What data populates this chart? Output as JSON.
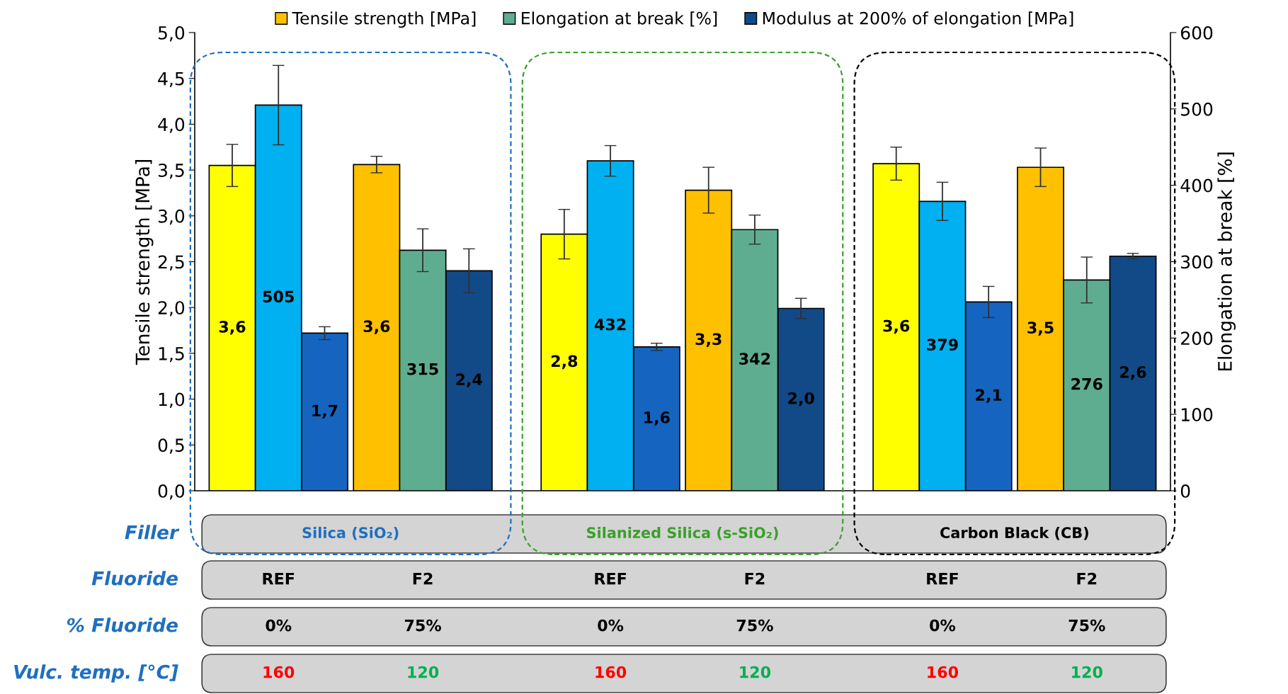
{
  "chart_data": {
    "type": "bar",
    "ylabel": "Tensile strength [MPa]",
    "y2label": "Elongation at break [%]",
    "categories": [
      "REF",
      "F2",
      "REF",
      "F2",
      "REF",
      "F2"
    ],
    "series": [
      {
        "name": "Tensile strength [MPa]",
        "color": "#ffc000",
        "colors": [
          "#ffff00",
          "#ffc000",
          "#ffff00",
          "#ffc000",
          "#ffff00",
          "#ffc000"
        ],
        "values": [
          3.55,
          3.56,
          2.8,
          3.28,
          3.57,
          3.53
        ],
        "errors": [
          0.23,
          0.09,
          0.27,
          0.25,
          0.18,
          0.21
        ],
        "value_labels": [
          "3,6",
          "3,6",
          "2,8",
          "3,3",
          "3,6",
          "3,5"
        ]
      },
      {
        "name": "Elongation at break [%]",
        "axis": "y2",
        "color": "#5fad91",
        "colors": [
          "#00b0f0",
          "#5fad91",
          "#00b0f0",
          "#5fad91",
          "#00b0f0",
          "#5fad91"
        ],
        "values": [
          505,
          315,
          432,
          342,
          379,
          276
        ],
        "errors": [
          52,
          28,
          20,
          19,
          25,
          30
        ],
        "value_labels": [
          "505",
          "315",
          "432",
          "342",
          "379",
          "276"
        ]
      },
      {
        "name": "Modulus at 200% of elongation [MPa]",
        "color": "#124a87",
        "colors": [
          "#1565c0",
          "#124a87",
          "#1565c0",
          "#124a87",
          "#1565c0",
          "#124a87"
        ],
        "values": [
          1.72,
          2.4,
          1.57,
          1.99,
          2.06,
          2.56
        ],
        "errors": [
          0.07,
          0.24,
          0.04,
          0.11,
          0.17,
          0.03
        ],
        "value_labels": [
          "1,7",
          "2,4",
          "1,6",
          "2,0",
          "2,1",
          "2,6"
        ]
      }
    ],
    "ylim": [
      0,
      5
    ],
    "yticks": [
      {
        "value": 0,
        "label": "0,0"
      },
      {
        "value": 0.5,
        "label": "0,5"
      },
      {
        "value": 1,
        "label": "1,0"
      },
      {
        "value": 1.5,
        "label": "1,5"
      },
      {
        "value": 2,
        "label": "2,0"
      },
      {
        "value": 2.5,
        "label": "2,5"
      },
      {
        "value": 3,
        "label": "3,0"
      },
      {
        "value": 3.5,
        "label": "3,5"
      },
      {
        "value": 4,
        "label": "4,0"
      },
      {
        "value": 4.5,
        "label": "4,5"
      },
      {
        "value": 5,
        "label": "5,0"
      }
    ],
    "y2lim": [
      0,
      600
    ],
    "y2ticks": [
      0,
      100,
      200,
      300,
      400,
      500,
      600
    ],
    "legend": "top",
    "grid": false,
    "annotations": [
      "Filler",
      "Fluoride",
      "% Fluoride",
      "Vulc. temp. [°C]",
      "Silica (SiO₂)",
      "Silanized Silica (s-SiO₂)",
      "Carbon Black (CB)",
      "0%",
      "75%",
      "0%",
      "75%",
      "0%",
      "75%",
      "160",
      "120",
      "160",
      "120",
      "160",
      "120"
    ]
  }
}
